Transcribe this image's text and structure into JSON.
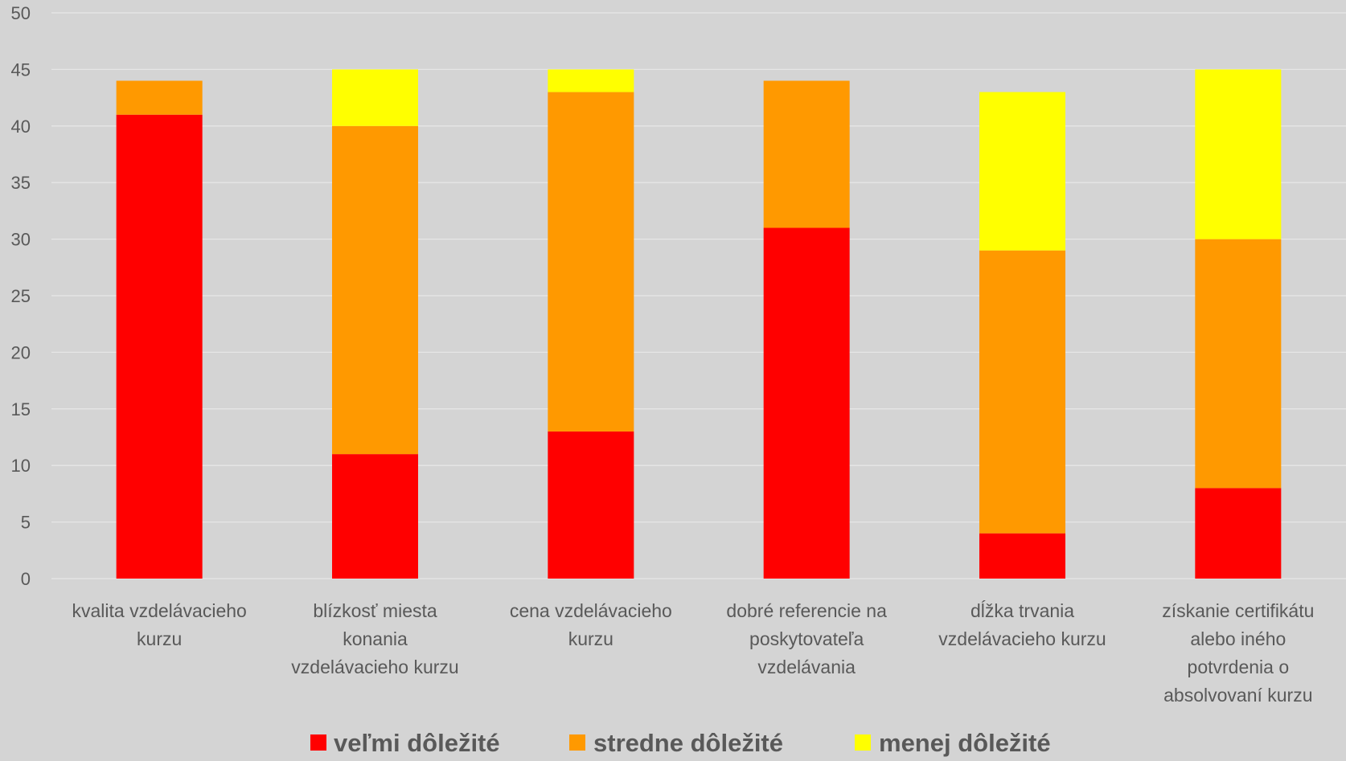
{
  "chart_data": {
    "type": "bar",
    "stacked": true,
    "categories": [
      [
        "kvalita vzdelávacieho",
        "kurzu"
      ],
      [
        "blízkosť miesta",
        "konania",
        "vzdelávacieho kurzu"
      ],
      [
        "cena vzdelávacieho",
        "kurzu"
      ],
      [
        "dobré referencie na",
        "poskytovateľa",
        "vzdelávania"
      ],
      [
        "dĺžka trvania",
        "vzdelávacieho kurzu"
      ],
      [
        "získanie certifikátu",
        "alebo iného",
        "potvrdenia o",
        "absolvovaní kurzu"
      ]
    ],
    "series": [
      {
        "name": "veľmi dôležité",
        "color": "#ff0000",
        "values": [
          41,
          11,
          13,
          31,
          4,
          8
        ]
      },
      {
        "name": "stredne dôležité",
        "color": "#ff9900",
        "values": [
          3,
          29,
          30,
          13,
          25,
          22
        ]
      },
      {
        "name": "menej dôležité",
        "color": "#ffff00",
        "values": [
          0,
          5,
          2,
          0,
          14,
          15
        ]
      }
    ],
    "ylim": [
      0,
      50
    ],
    "yticks": [
      0,
      5,
      10,
      15,
      20,
      25,
      30,
      35,
      40,
      45,
      50
    ],
    "grid": true,
    "legend_position": "bottom"
  }
}
